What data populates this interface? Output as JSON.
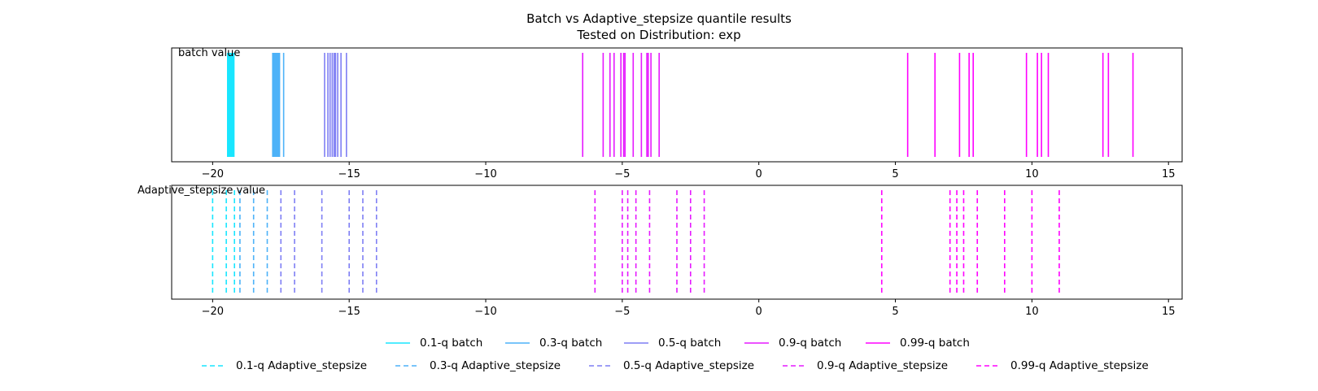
{
  "chart_data": {
    "type": "event",
    "title": "Batch vs Adaptive_stepsize quantile results",
    "subtitle": "Tested on Distribution: exp",
    "xlim": [
      -21.5,
      15.5
    ],
    "xticks": [
      -20,
      -15,
      -10,
      -5,
      0,
      5,
      10,
      15
    ],
    "xtick_labels": [
      "−20",
      "−15",
      "−10",
      "−5",
      "0",
      "5",
      "10",
      "15"
    ],
    "panels": [
      {
        "label": "batch value",
        "line_style": "solid",
        "series": [
          {
            "name": "0.1-q batch",
            "color": "#19e6ff",
            "values": [
              -19.45,
              -19.42,
              -19.4,
              -19.38,
              -19.36,
              -19.34,
              -19.32,
              -19.3,
              -19.28,
              -19.26,
              -19.24,
              -19.22
            ]
          },
          {
            "name": "0.3-q batch",
            "color": "#4db2f8",
            "values": [
              -17.8,
              -17.77,
              -17.74,
              -17.71,
              -17.68,
              -17.65,
              -17.62,
              -17.59,
              -17.55,
              -17.4
            ]
          },
          {
            "name": "0.5-q batch",
            "color": "#7f7ff4",
            "values": [
              -15.9,
              -15.78,
              -15.7,
              -15.62,
              -15.55,
              -15.5,
              -15.42,
              -15.3,
              -15.1
            ]
          },
          {
            "name": "0.9-q batch",
            "color": "#e61aff",
            "values": [
              -6.45,
              -5.7,
              -5.45,
              -5.3,
              -5.05,
              -4.95,
              -4.9,
              -4.6,
              -4.3,
              -4.1,
              -4.05,
              -3.95,
              -3.65
            ]
          },
          {
            "name": "0.99-q batch",
            "color": "#ff00ff",
            "values": [
              5.45,
              6.45,
              7.35,
              7.7,
              7.85,
              9.8,
              10.2,
              10.35,
              10.6,
              12.6,
              12.8,
              13.7
            ]
          }
        ]
      },
      {
        "label": "Adaptive_stepsize value",
        "line_style": "dashed",
        "series": [
          {
            "name": "0.1-q Adaptive_stepsize",
            "color": "#19e6ff",
            "values": [
              -20.0,
              -19.5,
              -19.2
            ]
          },
          {
            "name": "0.3-q Adaptive_stepsize",
            "color": "#4db2f8",
            "values": [
              -19.0,
              -18.5,
              -18.0
            ]
          },
          {
            "name": "0.5-q Adaptive_stepsize",
            "color": "#7f7ff4",
            "values": [
              -17.5,
              -17.0,
              -16.0,
              -15.0,
              -14.5,
              -14.0
            ]
          },
          {
            "name": "0.9-q Adaptive_stepsize",
            "color": "#e61aff",
            "values": [
              -6.0,
              -5.0,
              -4.8,
              -4.5,
              -4.0,
              -3.0,
              -2.5,
              -2.0
            ]
          },
          {
            "name": "0.99-q Adaptive_stepsize",
            "color": "#ff00ff",
            "values": [
              4.5,
              7.0,
              7.25,
              7.5,
              8.0,
              9.0,
              10.0,
              11.0
            ]
          }
        ]
      }
    ],
    "legend": {
      "placement": "bottom-center",
      "rows": [
        [
          "0.1-q batch",
          "0.3-q batch",
          "0.5-q batch",
          "0.9-q batch",
          "0.99-q batch"
        ],
        [
          "0.1-q Adaptive_stepsize",
          "0.3-q Adaptive_stepsize",
          "0.5-q Adaptive_stepsize",
          "0.9-q Adaptive_stepsize",
          "0.99-q Adaptive_stepsize"
        ]
      ]
    }
  }
}
